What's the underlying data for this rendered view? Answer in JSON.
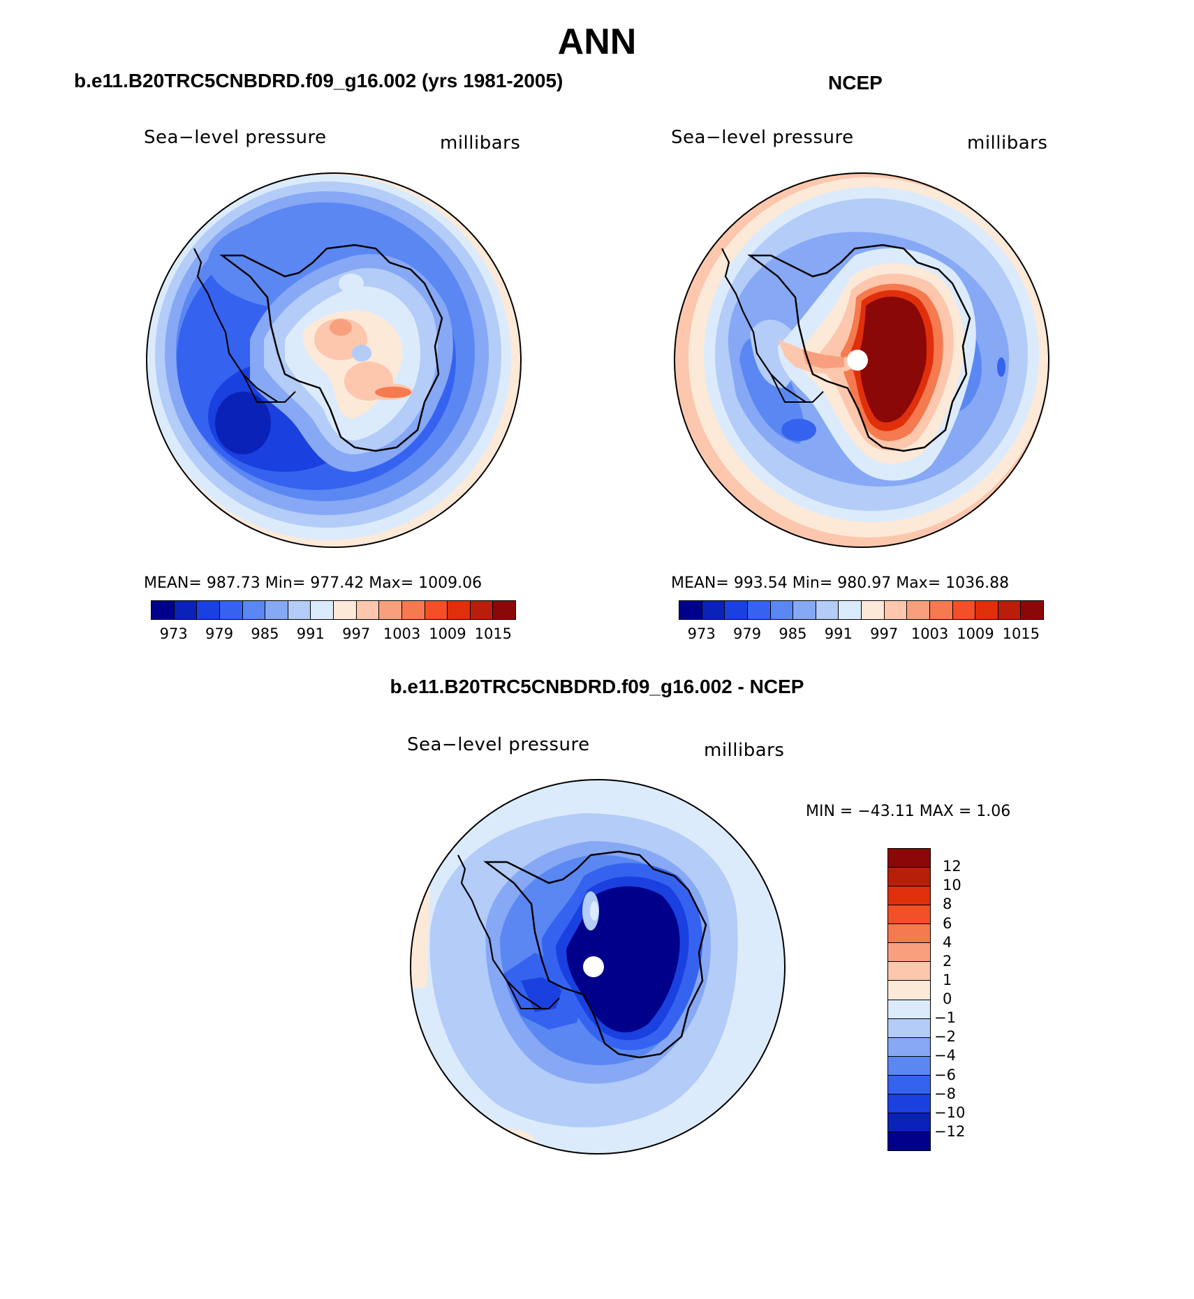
{
  "title": "ANN",
  "panels": {
    "model": {
      "title": "b.e11.B20TRC5CNBDRD.f09_g16.002 (yrs 1981-2005)",
      "variable": "Sea−level pressure",
      "units": "millibars",
      "stats": "MEAN=  987.73   Min=  977.42   Max=  1009.06"
    },
    "obs": {
      "title": "NCEP",
      "variable": "Sea−level pressure",
      "units": "millibars",
      "stats": "MEAN=  993.54   Min=  980.97   Max=  1036.88"
    },
    "diff": {
      "title": "b.e11.B20TRC5CNBDRD.f09_g16.002 - NCEP",
      "variable": "Sea−level pressure",
      "units": "millibars",
      "stats": "MIN  =  −43.11  MAX  =      1.06"
    }
  },
  "colorbars": {
    "absolute": {
      "colors": [
        "#00008a",
        "#0a22b8",
        "#1a40e0",
        "#3563f0",
        "#5b87f2",
        "#86a8f5",
        "#b3ccf8",
        "#dcebfb",
        "#fde9d8",
        "#fcc7ad",
        "#f8a07e",
        "#f57a4f",
        "#f35027",
        "#e02f0b",
        "#b81f0a",
        "#8a0808"
      ],
      "labels": [
        "973",
        "979",
        "985",
        "991",
        "997",
        "1003",
        "1009",
        "1015"
      ]
    },
    "difference": {
      "colors": [
        "#8a0808",
        "#b81f0a",
        "#e02f0b",
        "#f35027",
        "#f57a4f",
        "#f8a07e",
        "#fcc7ad",
        "#fde9d8",
        "#dcebfb",
        "#b3ccf8",
        "#86a8f5",
        "#5b87f2",
        "#3563f0",
        "#1a40e0",
        "#0a22b8",
        "#00008a"
      ],
      "labels": [
        "12",
        "10",
        "8",
        "6",
        "4",
        "2",
        "1",
        "0",
        "−1",
        "−2",
        "−4",
        "−6",
        "−8",
        "−10",
        "−12"
      ]
    }
  }
}
